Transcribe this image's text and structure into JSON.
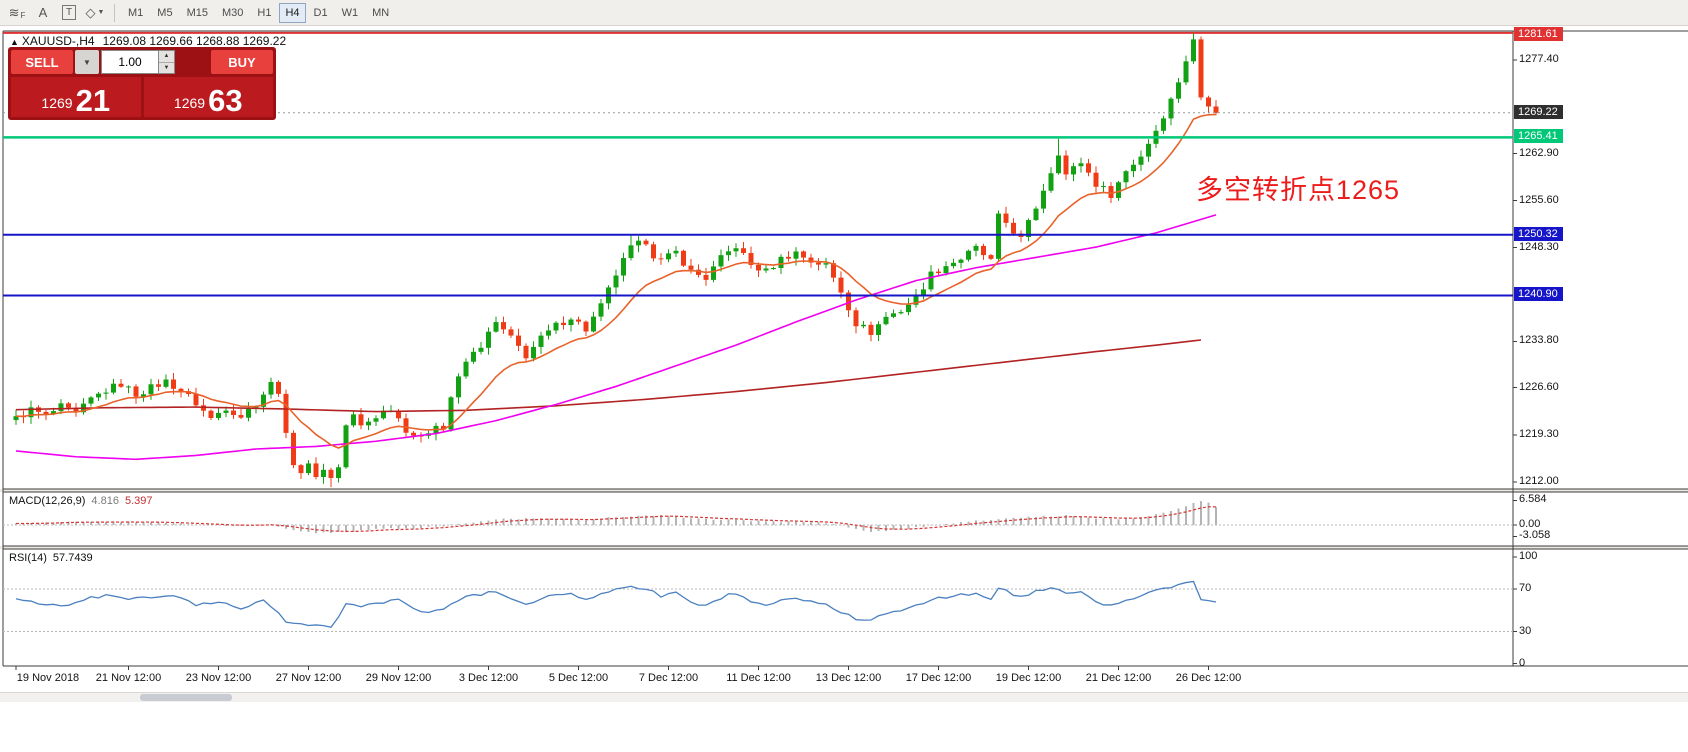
{
  "toolbar": {
    "icons": [
      {
        "name": "tick-chart-f-icon",
        "glyph": "≋",
        "badge": "F"
      },
      {
        "name": "arrow-cursor-a-icon",
        "glyph": "A"
      },
      {
        "name": "text-label-icon",
        "glyph": "T"
      },
      {
        "name": "shapes-icon",
        "glyph": "◇",
        "caret": "▼"
      }
    ],
    "timeframes": [
      {
        "label": "M1",
        "active": false
      },
      {
        "label": "M5",
        "active": false
      },
      {
        "label": "M15",
        "active": false
      },
      {
        "label": "M30",
        "active": false
      },
      {
        "label": "H1",
        "active": false
      },
      {
        "label": "H4",
        "active": true
      },
      {
        "label": "D1",
        "active": false
      },
      {
        "label": "W1",
        "active": false
      },
      {
        "label": "MN",
        "active": false
      }
    ]
  },
  "header": {
    "marker": "▲",
    "title": "XAUUSD-,H4",
    "ohlc": "1269.08 1269.66 1268.88 1269.22"
  },
  "trade_panel": {
    "sell_label": "SELL",
    "buy_label": "BUY",
    "volume": "1.00",
    "sell_big": "1269",
    "sell_pips": "21",
    "buy_big": "1269",
    "buy_pips": "63",
    "combo_caret": "▼",
    "spin_up": "▲",
    "spin_down": "▼"
  },
  "annotation": {
    "text": "多空转折点1265",
    "color": "#ee1b1b"
  },
  "indicators": {
    "macd_name": "MACD(12,26,9)",
    "macd_value": "4.816",
    "macd_signal": "5.397",
    "rsi_name": "RSI(14)",
    "rsi_value": "57.7439"
  },
  "colors": {
    "candle_up": "#12a112",
    "candle_down": "#ef3c17",
    "ma_fast": "#e8622a",
    "ma_mid": "#f000f0",
    "ma_slow": "#b22222",
    "line_green": "#00c878",
    "line_blue": "#1616c8",
    "line_red": "#e03232",
    "trade_button": "#e8403c",
    "trade_panel_bg": "#b5161b"
  },
  "chart_data": {
    "type": "candlestick",
    "title": "XAUUSD-,H4",
    "symbol": "XAUUSD-",
    "timeframe": "H4",
    "ohlc_current": {
      "open": 1269.08,
      "high": 1269.66,
      "low": 1268.88,
      "close": 1269.22
    },
    "price_axis": {
      "min": 1210.9,
      "max": 1281.9,
      "plain_ticks": [
        1277.4,
        1262.9,
        1255.6,
        1248.3,
        1233.8,
        1226.6,
        1219.3,
        1212.0
      ]
    },
    "price_labels": [
      {
        "value": "1281.61",
        "price": 1281.61,
        "bg": "#e03232"
      },
      {
        "value": "1269.22",
        "price": 1269.22,
        "bg": "#2f2f2f"
      },
      {
        "value": "1265.41",
        "price": 1265.41,
        "bg": "#00c878"
      },
      {
        "value": "1250.32",
        "price": 1250.32,
        "bg": "#1616c8"
      },
      {
        "value": "1240.90",
        "price": 1240.9,
        "bg": "#1616c8"
      }
    ],
    "hlines": [
      {
        "price": 1281.61,
        "color": "#e03232",
        "width": 2
      },
      {
        "price": 1265.41,
        "color": "#00c878",
        "width": 2.5
      },
      {
        "price": 1250.32,
        "color": "#1616c8",
        "width": 2
      },
      {
        "price": 1240.9,
        "color": "#1616c8",
        "width": 2
      }
    ],
    "bid_line": {
      "price": 1269.22,
      "color": "#9a9a9a"
    },
    "candles": {
      "count": 161,
      "up_color": "#12a112",
      "down_color": "#ef3c17",
      "close_waypoints": [
        [
          0,
          1221.8
        ],
        [
          2,
          1223.2
        ],
        [
          4,
          1222.2
        ],
        [
          6,
          1223.6
        ],
        [
          8,
          1222.4
        ],
        [
          10,
          1224.8
        ],
        [
          12,
          1226.2
        ],
        [
          14,
          1227.2
        ],
        [
          16,
          1225.6
        ],
        [
          18,
          1226.6
        ],
        [
          20,
          1227.6
        ],
        [
          22,
          1226.2
        ],
        [
          24,
          1224.2
        ],
        [
          26,
          1221.8
        ],
        [
          28,
          1223.6
        ],
        [
          30,
          1222.2
        ],
        [
          32,
          1224.2
        ],
        [
          34,
          1227.2
        ],
        [
          35,
          1226.2
        ],
        [
          36,
          1219.6
        ],
        [
          37,
          1214.6
        ],
        [
          38,
          1213.6
        ],
        [
          39,
          1214.4
        ],
        [
          40,
          1213.2
        ],
        [
          41,
          1213.8
        ],
        [
          42,
          1212.6
        ],
        [
          43,
          1214.2
        ],
        [
          44,
          1220.8
        ],
        [
          45,
          1222.2
        ],
        [
          46,
          1220.6
        ],
        [
          48,
          1222.2
        ],
        [
          50,
          1223.6
        ],
        [
          52,
          1220.2
        ],
        [
          54,
          1218.6
        ],
        [
          56,
          1221.2
        ],
        [
          57,
          1220.2
        ],
        [
          58,
          1225.2
        ],
        [
          60,
          1230.6
        ],
        [
          62,
          1233.2
        ],
        [
          64,
          1236.6
        ],
        [
          66,
          1234.2
        ],
        [
          68,
          1231.6
        ],
        [
          70,
          1234.2
        ],
        [
          72,
          1236.2
        ],
        [
          74,
          1237.6
        ],
        [
          76,
          1235.6
        ],
        [
          78,
          1239.2
        ],
        [
          80,
          1244.2
        ],
        [
          82,
          1248.2
        ],
        [
          84,
          1249.4
        ],
        [
          85,
          1247.2
        ],
        [
          86,
          1246.2
        ],
        [
          88,
          1247.6
        ],
        [
          90,
          1244.6
        ],
        [
          92,
          1243.6
        ],
        [
          94,
          1246.6
        ],
        [
          96,
          1248.6
        ],
        [
          98,
          1245.6
        ],
        [
          100,
          1244.6
        ],
        [
          102,
          1246.6
        ],
        [
          104,
          1247.6
        ],
        [
          106,
          1246.2
        ],
        [
          108,
          1245.6
        ],
        [
          110,
          1241.6
        ],
        [
          112,
          1236.6
        ],
        [
          114,
          1235.2
        ],
        [
          116,
          1237.6
        ],
        [
          118,
          1238.6
        ],
        [
          120,
          1240.6
        ],
        [
          122,
          1244.2
        ],
        [
          124,
          1245.6
        ],
        [
          126,
          1246.6
        ],
        [
          128,
          1248.2
        ],
        [
          130,
          1246.2
        ],
        [
          131,
          1253.6
        ],
        [
          132,
          1252.2
        ],
        [
          134,
          1249.6
        ],
        [
          136,
          1254.6
        ],
        [
          138,
          1260.2
        ],
        [
          139,
          1262.6
        ],
        [
          140,
          1259.6
        ],
        [
          142,
          1261.6
        ],
        [
          144,
          1258.2
        ],
        [
          146,
          1256.6
        ],
        [
          148,
          1260.2
        ],
        [
          150,
          1262.6
        ],
        [
          152,
          1266.6
        ],
        [
          154,
          1271.2
        ],
        [
          155,
          1274.2
        ],
        [
          156,
          1277.2
        ],
        [
          157,
          1280.6
        ],
        [
          158,
          1271.6
        ],
        [
          159,
          1270.2
        ],
        [
          160,
          1269.22
        ]
      ]
    },
    "ma": {
      "fast": {
        "color": "#e8622a",
        "type": "ema",
        "alpha": 0.14
      },
      "mid": {
        "color": "#f000f0",
        "waypoints": [
          [
            0,
            1216.8
          ],
          [
            8,
            1215.9
          ],
          [
            16,
            1215.5
          ],
          [
            24,
            1216.1
          ],
          [
            32,
            1217.1
          ],
          [
            40,
            1217.5
          ],
          [
            48,
            1218.3
          ],
          [
            56,
            1219.5
          ],
          [
            64,
            1221.5
          ],
          [
            72,
            1224.0
          ],
          [
            80,
            1226.8
          ],
          [
            88,
            1230.0
          ],
          [
            96,
            1233.2
          ],
          [
            104,
            1236.8
          ],
          [
            112,
            1240.2
          ],
          [
            120,
            1243.2
          ],
          [
            128,
            1245.2
          ],
          [
            136,
            1246.8
          ],
          [
            144,
            1248.4
          ],
          [
            152,
            1250.6
          ],
          [
            160,
            1253.4
          ]
        ]
      },
      "slow": {
        "color": "#b22222",
        "waypoints": [
          [
            0,
            1223.2
          ],
          [
            12,
            1223.5
          ],
          [
            24,
            1223.6
          ],
          [
            36,
            1223.3
          ],
          [
            48,
            1222.9
          ],
          [
            60,
            1223.1
          ],
          [
            72,
            1223.8
          ],
          [
            84,
            1224.8
          ],
          [
            96,
            1226.0
          ],
          [
            108,
            1227.4
          ],
          [
            120,
            1229.0
          ],
          [
            132,
            1230.6
          ],
          [
            144,
            1232.2
          ],
          [
            152,
            1233.2
          ],
          [
            158,
            1234.0
          ]
        ]
      }
    },
    "macd": {
      "name": "MACD(12,26,9)",
      "value": 4.816,
      "signal": 5.397,
      "ticks": [
        "6.584",
        "0.00",
        "-3.058"
      ],
      "tick_values": [
        6.584,
        0,
        -3.058
      ],
      "hist_color": "#b4b4b4",
      "signal_color": "#d83434",
      "waypoints": [
        [
          0,
          0.4
        ],
        [
          6,
          0.7
        ],
        [
          12,
          0.9
        ],
        [
          18,
          0.8
        ],
        [
          24,
          0.1
        ],
        [
          30,
          -0.3
        ],
        [
          34,
          0.2
        ],
        [
          36,
          -0.9
        ],
        [
          40,
          -2.2
        ],
        [
          44,
          -1.9
        ],
        [
          48,
          -1.1
        ],
        [
          52,
          -0.9
        ],
        [
          56,
          -0.5
        ],
        [
          60,
          0.6
        ],
        [
          64,
          1.6
        ],
        [
          68,
          1.7
        ],
        [
          72,
          1.6
        ],
        [
          76,
          1.4
        ],
        [
          80,
          2.1
        ],
        [
          84,
          2.7
        ],
        [
          88,
          2.3
        ],
        [
          92,
          1.6
        ],
        [
          96,
          1.4
        ],
        [
          100,
          0.9
        ],
        [
          104,
          0.8
        ],
        [
          108,
          0.5
        ],
        [
          110,
          -0.2
        ],
        [
          112,
          -1.1
        ],
        [
          114,
          -1.7
        ],
        [
          116,
          -1.6
        ],
        [
          118,
          -1.2
        ],
        [
          120,
          -0.7
        ],
        [
          124,
          0.3
        ],
        [
          128,
          1.1
        ],
        [
          132,
          1.9
        ],
        [
          136,
          2.3
        ],
        [
          140,
          2.5
        ],
        [
          144,
          1.9
        ],
        [
          146,
          1.5
        ],
        [
          148,
          1.6
        ],
        [
          152,
          2.8
        ],
        [
          154,
          3.8
        ],
        [
          156,
          5.0
        ],
        [
          157,
          5.9
        ],
        [
          158,
          6.4
        ],
        [
          159,
          6.0
        ],
        [
          160,
          4.816
        ]
      ]
    },
    "rsi": {
      "name": "RSI(14)",
      "value": 57.7439,
      "ticks": [
        "100",
        "70",
        "30",
        "0"
      ],
      "tick_values": [
        100,
        70,
        30,
        0
      ],
      "levels": [
        70,
        30
      ],
      "color": "#4a80c0",
      "waypoints": [
        [
          0,
          62
        ],
        [
          3,
          57
        ],
        [
          6,
          53
        ],
        [
          9,
          60
        ],
        [
          12,
          64
        ],
        [
          15,
          60
        ],
        [
          18,
          63
        ],
        [
          21,
          65
        ],
        [
          24,
          55
        ],
        [
          27,
          58
        ],
        [
          30,
          52
        ],
        [
          33,
          60
        ],
        [
          36,
          40
        ],
        [
          39,
          37
        ],
        [
          42,
          34
        ],
        [
          44,
          55
        ],
        [
          46,
          54
        ],
        [
          48,
          57
        ],
        [
          51,
          59
        ],
        [
          54,
          48
        ],
        [
          57,
          52
        ],
        [
          60,
          63
        ],
        [
          63,
          66
        ],
        [
          64,
          68
        ],
        [
          66,
          60
        ],
        [
          68,
          56
        ],
        [
          70,
          61
        ],
        [
          72,
          64
        ],
        [
          74,
          66
        ],
        [
          76,
          60
        ],
        [
          78,
          66
        ],
        [
          80,
          70
        ],
        [
          82,
          72
        ],
        [
          84,
          71
        ],
        [
          86,
          63
        ],
        [
          88,
          66
        ],
        [
          90,
          57
        ],
        [
          92,
          55
        ],
        [
          94,
          62
        ],
        [
          96,
          66
        ],
        [
          98,
          58
        ],
        [
          100,
          55
        ],
        [
          102,
          60
        ],
        [
          104,
          62
        ],
        [
          106,
          58
        ],
        [
          108,
          56
        ],
        [
          110,
          48
        ],
        [
          112,
          42
        ],
        [
          114,
          40
        ],
        [
          116,
          47
        ],
        [
          118,
          50
        ],
        [
          120,
          54
        ],
        [
          122,
          60
        ],
        [
          124,
          62
        ],
        [
          126,
          64
        ],
        [
          128,
          67
        ],
        [
          130,
          60
        ],
        [
          131,
          70
        ],
        [
          132,
          68
        ],
        [
          134,
          62
        ],
        [
          136,
          68
        ],
        [
          138,
          72
        ],
        [
          140,
          66
        ],
        [
          142,
          68
        ],
        [
          144,
          58
        ],
        [
          146,
          55
        ],
        [
          148,
          60
        ],
        [
          150,
          64
        ],
        [
          152,
          68
        ],
        [
          154,
          72
        ],
        [
          156,
          75
        ],
        [
          157,
          77
        ],
        [
          158,
          60
        ],
        [
          159,
          59
        ],
        [
          160,
          57.74
        ]
      ]
    },
    "time_axis": {
      "labels": [
        "19 Nov 2018",
        "21 Nov 12:00",
        "23 Nov 12:00",
        "27 Nov 12:00",
        "29 Nov 12:00",
        "3 Dec 12:00",
        "5 Dec 12:00",
        "7 Dec 12:00",
        "11 Dec 12:00",
        "13 Dec 12:00",
        "17 Dec 12:00",
        "19 Dec 12:00",
        "21 Dec 12:00",
        "26 Dec 12:00"
      ],
      "indices": [
        0,
        15,
        27,
        39,
        51,
        63,
        75,
        87,
        99,
        111,
        123,
        135,
        147,
        159
      ]
    }
  }
}
